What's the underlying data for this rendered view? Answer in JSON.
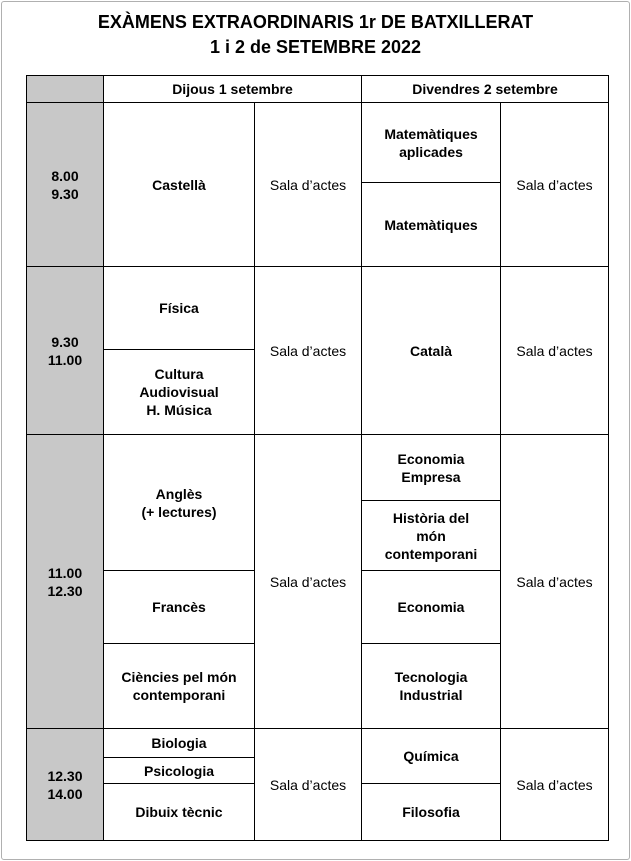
{
  "header": {
    "title_lines": [
      "EXÀMENS EXTRAORDINARIS 1r DE BATXILLERAT",
      "1 i 2 de SETEMBRE 2022"
    ]
  },
  "table": {
    "days": [
      "Dijous 1 setembre",
      "Divendres 2 setembre"
    ],
    "rows": [
      {
        "time": [
          "8.00",
          "9.30"
        ],
        "day1": {
          "subjects": [
            [
              "Castellà"
            ]
          ],
          "room": "Sala d’actes"
        },
        "day2": {
          "subjects": [
            [
              "Matemàtiques",
              "aplicades"
            ],
            [
              "Matemàtiques"
            ]
          ],
          "room": "Sala d’actes"
        }
      },
      {
        "time": [
          "9.30",
          "11.00"
        ],
        "day1": {
          "subjects": [
            [
              "Física"
            ],
            [
              "Cultura",
              "Audiovisual",
              "H. Música"
            ]
          ],
          "room": "Sala d’actes"
        },
        "day2": {
          "subjects": [
            [
              "Català"
            ]
          ],
          "room": "Sala d’actes"
        }
      },
      {
        "time": [
          "11.00",
          "12.30"
        ],
        "day1": {
          "subjects": [
            [
              "Anglès",
              "(+ lectures)"
            ],
            [
              "Francès"
            ],
            [
              "Ciències pel món",
              "contemporani"
            ]
          ],
          "room": "Sala d’actes"
        },
        "day2": {
          "subjects": [
            [
              "Economia",
              "Empresa"
            ],
            [
              "Història del",
              "món",
              "contemporani"
            ],
            [
              "Economia"
            ],
            [
              "Tecnologia",
              "Industrial"
            ]
          ],
          "room": "Sala d’actes"
        }
      },
      {
        "time": [
          "12.30",
          "14.00"
        ],
        "day1": {
          "subjects": [
            [
              "Biologia"
            ],
            [
              "Psicologia"
            ],
            [
              "Dibuix tècnic"
            ]
          ],
          "room": "Sala d’actes"
        },
        "day2": {
          "subjects": [
            [
              "Química"
            ],
            [
              "Filosofia"
            ]
          ],
          "room": "Sala d’actes"
        }
      }
    ]
  }
}
